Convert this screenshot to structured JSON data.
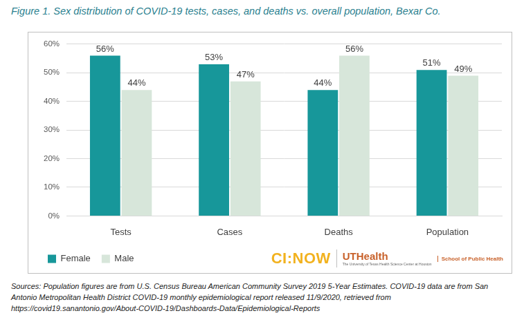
{
  "chart_data": {
    "type": "bar",
    "title": "Figure 1. Sex distribution of COVID-19 tests, cases, and deaths vs. overall population, Bexar Co.",
    "categories": [
      "Tests",
      "Cases",
      "Deaths",
      "Population"
    ],
    "series": [
      {
        "name": "Female",
        "color": "#17979a",
        "values": [
          56,
          53,
          44,
          51
        ],
        "value_labels": [
          "56%",
          "53%",
          "44%",
          "51%"
        ]
      },
      {
        "name": "Male",
        "color": "#d7e6da",
        "values": [
          44,
          47,
          56,
          49
        ],
        "value_labels": [
          "44%",
          "47%",
          "56%",
          "49%"
        ]
      }
    ],
    "ylim": [
      0,
      60
    ],
    "yticks": [
      {
        "value": 0,
        "label": "0%"
      },
      {
        "value": 10,
        "label": "10%"
      },
      {
        "value": 20,
        "label": "20%"
      },
      {
        "value": 30,
        "label": "30%"
      },
      {
        "value": 40,
        "label": "40%"
      },
      {
        "value": 50,
        "label": "50%"
      },
      {
        "value": 60,
        "label": "60%"
      }
    ],
    "grid": true,
    "legend": "bottom",
    "data_labels": true,
    "annotations": [
      "CI:NOW",
      "UTHealth",
      "The University of Texas Health Science Center at Houston",
      "School of Public Health"
    ],
    "source": "Sources: Population figures are from U.S. Census Bureau American Community Survey 2019 5-Year Estimates. COVID-19 data are from San Antonio Metropolitan Health District COVID-19 monthly epidemiological report released 11/9/2020, retrieved from https://covid19.sanantonio.gov/About-COVID-19/Dashboards-Data/Epidemiological-Reports"
  }
}
